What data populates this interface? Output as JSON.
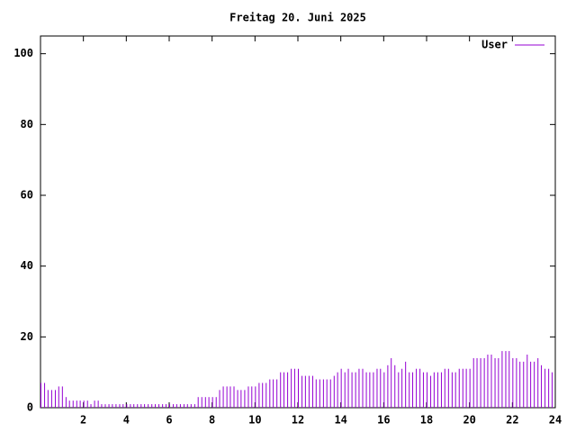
{
  "chart_data": {
    "type": "impulse",
    "title": "Freitag 20. Juni 2025",
    "series": [
      {
        "name": "User",
        "color": "#9400d3",
        "x": [
          0,
          0.17,
          0.33,
          0.5,
          0.67,
          0.83,
          1,
          1.17,
          1.33,
          1.5,
          1.67,
          1.83,
          2,
          2.17,
          2.33,
          2.5,
          2.67,
          2.83,
          3,
          3.17,
          3.33,
          3.5,
          3.67,
          3.83,
          4,
          4.17,
          4.33,
          4.5,
          4.67,
          4.83,
          5,
          5.17,
          5.33,
          5.5,
          5.67,
          5.83,
          6,
          6.17,
          6.33,
          6.5,
          6.67,
          6.83,
          7,
          7.17,
          7.33,
          7.5,
          7.67,
          7.83,
          8,
          8.17,
          8.33,
          8.5,
          8.67,
          8.83,
          9,
          9.17,
          9.33,
          9.5,
          9.67,
          9.83,
          10,
          10.17,
          10.33,
          10.5,
          10.67,
          10.83,
          11,
          11.17,
          11.33,
          11.5,
          11.67,
          11.83,
          12,
          12.17,
          12.33,
          12.5,
          12.67,
          12.83,
          13,
          13.17,
          13.33,
          13.5,
          13.67,
          13.83,
          14,
          14.17,
          14.33,
          14.5,
          14.67,
          14.83,
          15,
          15.17,
          15.33,
          15.5,
          15.67,
          15.83,
          16,
          16.17,
          16.33,
          16.5,
          16.67,
          16.83,
          17,
          17.17,
          17.33,
          17.5,
          17.67,
          17.83,
          18,
          18.17,
          18.33,
          18.5,
          18.67,
          18.83,
          19,
          19.17,
          19.33,
          19.5,
          19.67,
          19.83,
          20,
          20.17,
          20.33,
          20.5,
          20.67,
          20.83,
          21,
          21.17,
          21.33,
          21.5,
          21.67,
          21.83,
          22,
          22.17,
          22.33,
          22.5,
          22.67,
          22.83,
          23,
          23.17,
          23.33,
          23.5,
          23.67,
          23.83
        ],
        "values": [
          7,
          7,
          5,
          5,
          5,
          6,
          6,
          3,
          2,
          2,
          2,
          2,
          2,
          2,
          1,
          2,
          2,
          1,
          1,
          1,
          1,
          1,
          1,
          1,
          1,
          1,
          1,
          1,
          1,
          1,
          1,
          1,
          1,
          1,
          1,
          1,
          1,
          1,
          1,
          1,
          1,
          1,
          1,
          1,
          3,
          3,
          3,
          3,
          3,
          3,
          5,
          6,
          6,
          6,
          6,
          5,
          5,
          5,
          6,
          6,
          6,
          7,
          7,
          7,
          8,
          8,
          8,
          10,
          10,
          10,
          11,
          11,
          11,
          9,
          9,
          9,
          9,
          8,
          8,
          8,
          8,
          8,
          9,
          10,
          11,
          10,
          11,
          10,
          10,
          11,
          11,
          10,
          10,
          10,
          11,
          11,
          10,
          12,
          14,
          12,
          10,
          11,
          13,
          10,
          10,
          11,
          11,
          10,
          10,
          9,
          10,
          10,
          10,
          11,
          11,
          10,
          10,
          11,
          11,
          11,
          11,
          14,
          14,
          14,
          14,
          15,
          15,
          14,
          14,
          16,
          16,
          16,
          14,
          14,
          13,
          13,
          15,
          13,
          13,
          14,
          12,
          11,
          11,
          10
        ]
      }
    ],
    "xlim": [
      0,
      24
    ],
    "xticks": [
      2,
      4,
      6,
      8,
      10,
      12,
      14,
      16,
      18,
      20,
      22,
      24
    ],
    "ylim": [
      0,
      105
    ],
    "yticks": [
      0,
      20,
      40,
      60,
      80,
      100
    ],
    "legend": "top-right"
  }
}
